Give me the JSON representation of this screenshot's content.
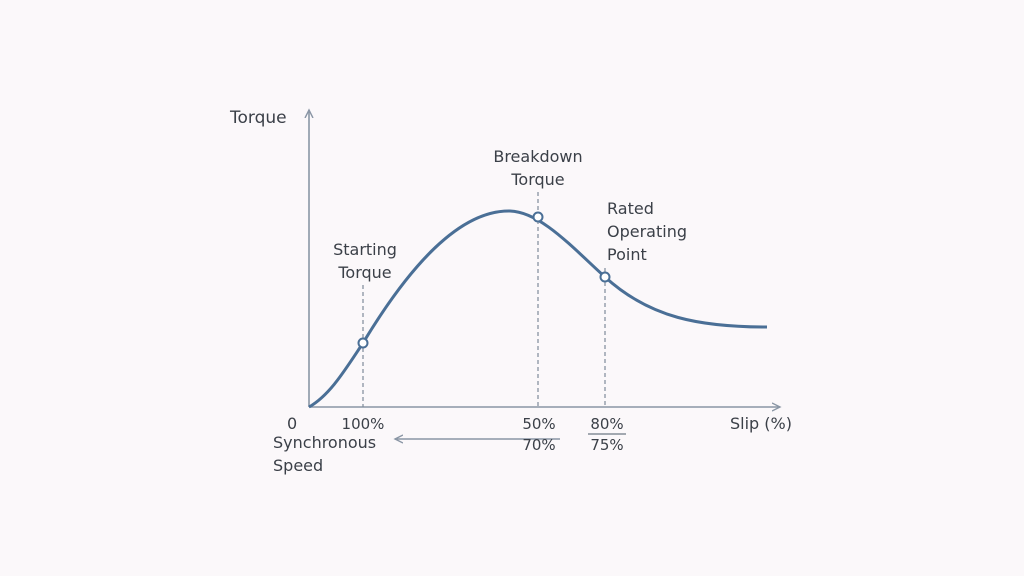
{
  "axis": {
    "y_label": "Torque",
    "x_label": "Slip (%)",
    "origin": "0"
  },
  "points": [
    {
      "label": "Starting Torque",
      "tick": "100%"
    },
    {
      "label": "Breakdown Torque",
      "tick": "50%",
      "sub_tick": "70%"
    },
    {
      "label": "Rated Operating Point",
      "tick": "80%",
      "sub_tick": "75%"
    }
  ],
  "speed_note": "Synchronous Speed"
}
